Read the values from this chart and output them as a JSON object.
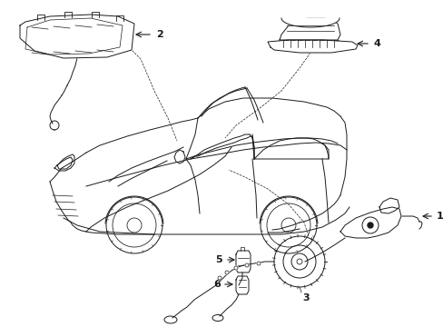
{
  "background_color": "#ffffff",
  "line_color": "#1a1a1a",
  "figsize": [
    4.89,
    3.6
  ],
  "dpi": 100,
  "xlim": [
    0,
    489
  ],
  "ylim": [
    0,
    360
  ],
  "lw": 0.7
}
